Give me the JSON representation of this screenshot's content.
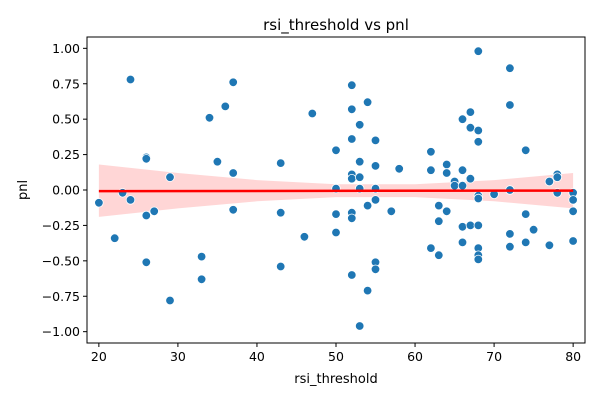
{
  "chart_data": {
    "type": "scatter",
    "title": "rsi_threshold vs pnl",
    "xlabel": "rsi_threshold",
    "ylabel": "pnl",
    "xlim": [
      18.5,
      81.5
    ],
    "ylim": [
      -1.08,
      1.08
    ],
    "xticks": [
      20,
      30,
      40,
      50,
      60,
      70,
      80
    ],
    "yticks": [
      -1.0,
      -0.75,
      -0.5,
      -0.25,
      0.0,
      0.25,
      0.5,
      0.75,
      1.0
    ],
    "ytick_labels": [
      "−1.00",
      "−0.75",
      "−0.50",
      "−0.25",
      "0.00",
      "0.25",
      "0.50",
      "0.75",
      "1.00"
    ],
    "grid": false,
    "point_color": "#1f77b4",
    "fit_color": "#ff0000",
    "band_color": "#ffcccc",
    "points": [
      {
        "x": 20,
        "y": -0.09
      },
      {
        "x": 22,
        "y": -0.34
      },
      {
        "x": 23,
        "y": -0.02
      },
      {
        "x": 24,
        "y": 0.78
      },
      {
        "x": 24,
        "y": -0.07
      },
      {
        "x": 26,
        "y": 0.23
      },
      {
        "x": 26,
        "y": 0.22
      },
      {
        "x": 26,
        "y": -0.18
      },
      {
        "x": 26,
        "y": -0.51
      },
      {
        "x": 27,
        "y": -0.15
      },
      {
        "x": 29,
        "y": 0.09
      },
      {
        "x": 29,
        "y": -0.78
      },
      {
        "x": 33,
        "y": -0.47
      },
      {
        "x": 33,
        "y": -0.63
      },
      {
        "x": 34,
        "y": 0.51
      },
      {
        "x": 35,
        "y": 0.2
      },
      {
        "x": 36,
        "y": 0.59
      },
      {
        "x": 37,
        "y": 0.76
      },
      {
        "x": 37,
        "y": 0.12
      },
      {
        "x": 37,
        "y": -0.14
      },
      {
        "x": 43,
        "y": 0.19
      },
      {
        "x": 43,
        "y": -0.16
      },
      {
        "x": 43,
        "y": -0.54
      },
      {
        "x": 46,
        "y": -0.33
      },
      {
        "x": 47,
        "y": 0.54
      },
      {
        "x": 50,
        "y": 0.28
      },
      {
        "x": 50,
        "y": 0.01
      },
      {
        "x": 50,
        "y": -0.17
      },
      {
        "x": 50,
        "y": -0.3
      },
      {
        "x": 52,
        "y": 0.74
      },
      {
        "x": 52,
        "y": 0.57
      },
      {
        "x": 52,
        "y": 0.36
      },
      {
        "x": 52,
        "y": 0.11
      },
      {
        "x": 52,
        "y": 0.08
      },
      {
        "x": 52,
        "y": -0.16
      },
      {
        "x": 52,
        "y": -0.2
      },
      {
        "x": 52,
        "y": -0.6
      },
      {
        "x": 53,
        "y": 0.46
      },
      {
        "x": 53,
        "y": 0.2
      },
      {
        "x": 53,
        "y": 0.09
      },
      {
        "x": 53,
        "y": 0.01
      },
      {
        "x": 53,
        "y": -0.96
      },
      {
        "x": 54,
        "y": 0.62
      },
      {
        "x": 54,
        "y": -0.11
      },
      {
        "x": 54,
        "y": -0.71
      },
      {
        "x": 55,
        "y": 0.35
      },
      {
        "x": 55,
        "y": 0.17
      },
      {
        "x": 55,
        "y": 0.01
      },
      {
        "x": 55,
        "y": -0.07
      },
      {
        "x": 55,
        "y": -0.51
      },
      {
        "x": 55,
        "y": -0.56
      },
      {
        "x": 57,
        "y": -0.15
      },
      {
        "x": 58,
        "y": 0.15
      },
      {
        "x": 62,
        "y": 0.27
      },
      {
        "x": 62,
        "y": 0.14
      },
      {
        "x": 62,
        "y": -0.41
      },
      {
        "x": 63,
        "y": -0.11
      },
      {
        "x": 63,
        "y": -0.22
      },
      {
        "x": 63,
        "y": -0.46
      },
      {
        "x": 64,
        "y": 0.18
      },
      {
        "x": 64,
        "y": 0.12
      },
      {
        "x": 64,
        "y": -0.15
      },
      {
        "x": 65,
        "y": 0.06
      },
      {
        "x": 65,
        "y": 0.03
      },
      {
        "x": 66,
        "y": 0.5
      },
      {
        "x": 66,
        "y": 0.14
      },
      {
        "x": 66,
        "y": 0.03
      },
      {
        "x": 66,
        "y": -0.26
      },
      {
        "x": 66,
        "y": -0.37
      },
      {
        "x": 67,
        "y": 0.55
      },
      {
        "x": 67,
        "y": 0.44
      },
      {
        "x": 67,
        "y": 0.08
      },
      {
        "x": 67,
        "y": -0.25
      },
      {
        "x": 68,
        "y": 0.98
      },
      {
        "x": 68,
        "y": 0.42
      },
      {
        "x": 68,
        "y": 0.34
      },
      {
        "x": 68,
        "y": -0.04
      },
      {
        "x": 68,
        "y": -0.06
      },
      {
        "x": 68,
        "y": -0.25
      },
      {
        "x": 68,
        "y": -0.41
      },
      {
        "x": 68,
        "y": -0.46
      },
      {
        "x": 68,
        "y": -0.49
      },
      {
        "x": 70,
        "y": -0.03
      },
      {
        "x": 72,
        "y": 0.86
      },
      {
        "x": 72,
        "y": 0.6
      },
      {
        "x": 72,
        "y": 0.0
      },
      {
        "x": 72,
        "y": -0.31
      },
      {
        "x": 72,
        "y": -0.4
      },
      {
        "x": 74,
        "y": 0.28
      },
      {
        "x": 74,
        "y": -0.17
      },
      {
        "x": 74,
        "y": -0.37
      },
      {
        "x": 75,
        "y": -0.28
      },
      {
        "x": 77,
        "y": 0.06
      },
      {
        "x": 77,
        "y": -0.39
      },
      {
        "x": 78,
        "y": 0.11
      },
      {
        "x": 78,
        "y": 0.09
      },
      {
        "x": 78,
        "y": -0.02
      },
      {
        "x": 80,
        "y": -0.02
      },
      {
        "x": 80,
        "y": -0.07
      },
      {
        "x": 80,
        "y": -0.15
      },
      {
        "x": 80,
        "y": -0.36
      }
    ],
    "fit_line": {
      "x": [
        20,
        80
      ],
      "y": [
        -0.008,
        -0.004
      ]
    },
    "confidence_band": {
      "x": [
        20,
        30,
        40,
        50,
        60,
        70,
        80
      ],
      "upper": [
        0.18,
        0.12,
        0.07,
        0.04,
        0.04,
        0.07,
        0.12
      ],
      "lower": [
        -0.19,
        -0.13,
        -0.08,
        -0.05,
        -0.05,
        -0.08,
        -0.13
      ]
    }
  }
}
